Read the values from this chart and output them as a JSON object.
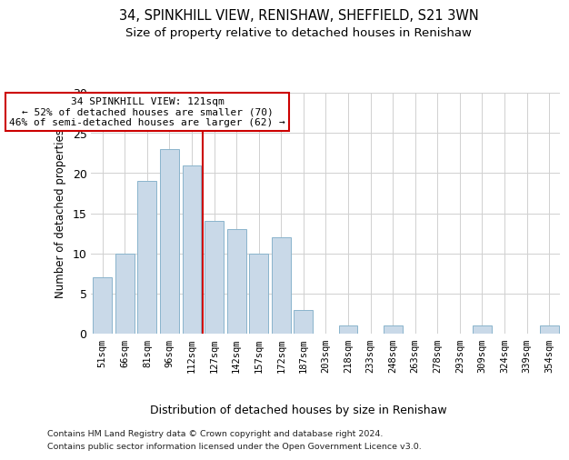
{
  "title1": "34, SPINKHILL VIEW, RENISHAW, SHEFFIELD, S21 3WN",
  "title2": "Size of property relative to detached houses in Renishaw",
  "xlabel": "Distribution of detached houses by size in Renishaw",
  "ylabel": "Number of detached properties",
  "bar_labels": [
    "51sqm",
    "66sqm",
    "81sqm",
    "96sqm",
    "112sqm",
    "127sqm",
    "142sqm",
    "157sqm",
    "172sqm",
    "187sqm",
    "203sqm",
    "218sqm",
    "233sqm",
    "248sqm",
    "263sqm",
    "278sqm",
    "293sqm",
    "309sqm",
    "324sqm",
    "339sqm",
    "354sqm"
  ],
  "bar_values": [
    7,
    10,
    19,
    23,
    21,
    14,
    13,
    10,
    12,
    3,
    0,
    1,
    0,
    1,
    0,
    0,
    0,
    1,
    0,
    0,
    1
  ],
  "bar_color": "#c9d9e8",
  "bar_edge_color": "#8ab4cc",
  "vline_x": 4.5,
  "vline_color": "#cc0000",
  "annotation_text": "34 SPINKHILL VIEW: 121sqm\n← 52% of detached houses are smaller (70)\n46% of semi-detached houses are larger (62) →",
  "annotation_box_color": "#ffffff",
  "annotation_box_edge": "#cc0000",
  "ylim": [
    0,
    30
  ],
  "yticks": [
    0,
    5,
    10,
    15,
    20,
    25,
    30
  ],
  "background_color": "#ffffff",
  "grid_color": "#d0d0d0",
  "footer1": "Contains HM Land Registry data © Crown copyright and database right 2024.",
  "footer2": "Contains public sector information licensed under the Open Government Licence v3.0."
}
